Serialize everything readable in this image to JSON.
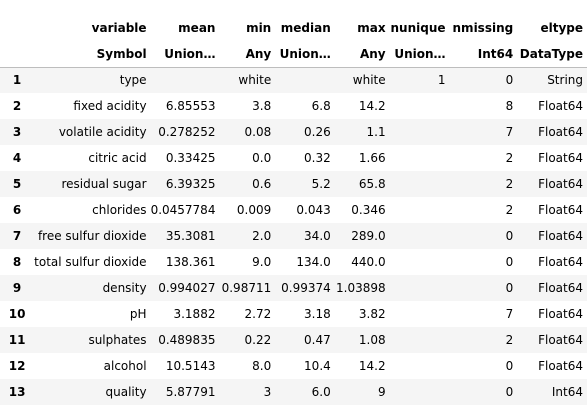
{
  "table": {
    "columns": [
      {
        "name": "variable",
        "type": "Symbol"
      },
      {
        "name": "mean",
        "type": "Union…"
      },
      {
        "name": "min",
        "type": "Any"
      },
      {
        "name": "median",
        "type": "Union…"
      },
      {
        "name": "max",
        "type": "Any"
      },
      {
        "name": "nunique",
        "type": "Union…"
      },
      {
        "name": "nmissing",
        "type": "Int64"
      },
      {
        "name": "eltype",
        "type": "DataType"
      }
    ],
    "rows": [
      {
        "index": "1",
        "variable": "type",
        "mean": "",
        "min": "white",
        "median": "",
        "max": "white",
        "nunique": "1",
        "nmissing": "0",
        "eltype": "String"
      },
      {
        "index": "2",
        "variable": "fixed acidity",
        "mean": "6.85553",
        "min": "3.8",
        "median": "6.8",
        "max": "14.2",
        "nunique": "",
        "nmissing": "8",
        "eltype": "Float64"
      },
      {
        "index": "3",
        "variable": "volatile acidity",
        "mean": "0.278252",
        "min": "0.08",
        "median": "0.26",
        "max": "1.1",
        "nunique": "",
        "nmissing": "7",
        "eltype": "Float64"
      },
      {
        "index": "4",
        "variable": "citric acid",
        "mean": "0.33425",
        "min": "0.0",
        "median": "0.32",
        "max": "1.66",
        "nunique": "",
        "nmissing": "2",
        "eltype": "Float64"
      },
      {
        "index": "5",
        "variable": "residual sugar",
        "mean": "6.39325",
        "min": "0.6",
        "median": "5.2",
        "max": "65.8",
        "nunique": "",
        "nmissing": "2",
        "eltype": "Float64"
      },
      {
        "index": "6",
        "variable": "chlorides",
        "mean": "0.0457784",
        "min": "0.009",
        "median": "0.043",
        "max": "0.346",
        "nunique": "",
        "nmissing": "2",
        "eltype": "Float64"
      },
      {
        "index": "7",
        "variable": "free sulfur dioxide",
        "mean": "35.3081",
        "min": "2.0",
        "median": "34.0",
        "max": "289.0",
        "nunique": "",
        "nmissing": "0",
        "eltype": "Float64"
      },
      {
        "index": "8",
        "variable": "total sulfur dioxide",
        "mean": "138.361",
        "min": "9.0",
        "median": "134.0",
        "max": "440.0",
        "nunique": "",
        "nmissing": "0",
        "eltype": "Float64"
      },
      {
        "index": "9",
        "variable": "density",
        "mean": "0.994027",
        "min": "0.98711",
        "median": "0.99374",
        "max": "1.03898",
        "nunique": "",
        "nmissing": "0",
        "eltype": "Float64"
      },
      {
        "index": "10",
        "variable": "pH",
        "mean": "3.1882",
        "min": "2.72",
        "median": "3.18",
        "max": "3.82",
        "nunique": "",
        "nmissing": "7",
        "eltype": "Float64"
      },
      {
        "index": "11",
        "variable": "sulphates",
        "mean": "0.489835",
        "min": "0.22",
        "median": "0.47",
        "max": "1.08",
        "nunique": "",
        "nmissing": "2",
        "eltype": "Float64"
      },
      {
        "index": "12",
        "variable": "alcohol",
        "mean": "10.5143",
        "min": "8.0",
        "median": "10.4",
        "max": "14.2",
        "nunique": "",
        "nmissing": "0",
        "eltype": "Float64"
      },
      {
        "index": "13",
        "variable": "quality",
        "mean": "5.87791",
        "min": "3",
        "median": "6.0",
        "max": "9",
        "nunique": "",
        "nmissing": "0",
        "eltype": "Int64"
      }
    ]
  }
}
